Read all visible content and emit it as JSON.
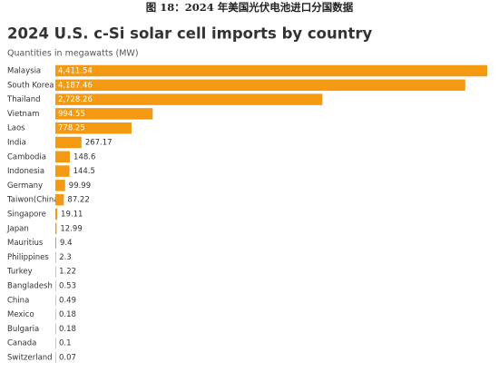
{
  "caption": "图 18：2024 年美国光伏电池进口分国数据",
  "chart_data": {
    "type": "barh",
    "title": "2024 U.S. c-Si solar cell imports by country",
    "subtitle": "Quantities in megawatts (MW)",
    "color": "#f39a12",
    "categories": [
      "Malaysia",
      "South Korea",
      "Thailand",
      "Vietnam",
      "Laos",
      "India",
      "Cambodia",
      "Indonesia",
      "Germany",
      "Taiwon(China)",
      "Singapore",
      "Japan",
      "Mauritius",
      "Philippines",
      "Turkey",
      "Bangladesh",
      "China",
      "Mexico",
      "Bulgaria",
      "Canada",
      "Switzerland"
    ],
    "values": [
      4411.54,
      4187.46,
      2728.26,
      994.55,
      778.25,
      267.17,
      148.6,
      144.5,
      99.99,
      87.22,
      19.11,
      12.99,
      9.4,
      2.3,
      1.22,
      0.53,
      0.49,
      0.18,
      0.18,
      0.1,
      0.07
    ],
    "value_labels": [
      "4,411.54",
      "4,187.46",
      "2,728.26",
      "994.55",
      "778.25",
      "267.17",
      "148.6",
      "144.5",
      "99.99",
      "87.22",
      "19.11",
      "12.99",
      "9.4",
      "2.3",
      "1.22",
      "0.53",
      "0.49",
      "0.18",
      "0.18",
      "0.1",
      "0.07"
    ]
  }
}
